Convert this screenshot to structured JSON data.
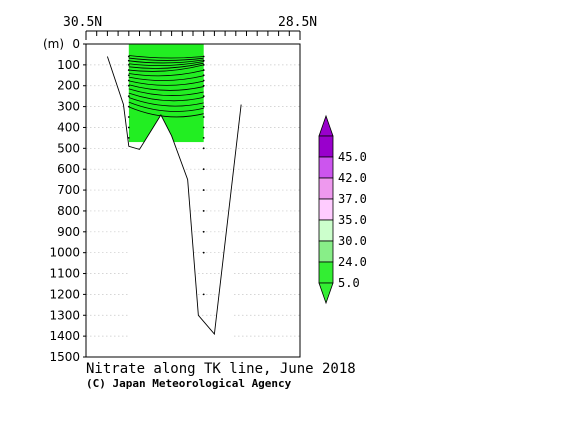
{
  "chart_data": {
    "type": "contour-section",
    "title": "Nitrate along TK line, June 2018",
    "credit": "(C) Japan Meteorological Agency",
    "x_axis": {
      "left_label": "30.5N",
      "right_label": "28.5N",
      "range_lat": [
        30.5,
        28.5
      ]
    },
    "y_axis": {
      "unit_label": "(m)",
      "range": [
        0,
        1500
      ],
      "ticks": [
        "0",
        "100",
        "200",
        "300",
        "400",
        "500",
        "600",
        "700",
        "800",
        "900",
        "1000",
        "1100",
        "1200",
        "1300",
        "1400",
        "1500"
      ]
    },
    "grid": true,
    "legend": {
      "placement": "right",
      "levels": [
        "45.0",
        "42.0",
        "37.0",
        "35.0",
        "30.0",
        "24.0",
        "5.0"
      ],
      "colors": [
        "#9900cc",
        "#cc55ee",
        "#ee99ee",
        "#ffccff",
        "#ccffcc",
        "#88ee88",
        "#33ee33"
      ],
      "top_color": "#9900cc",
      "bottom_color": "#33ee33"
    },
    "fill_color": "#22ee22",
    "contour_region": {
      "lat_north": 30.1,
      "lat_south": 29.4,
      "max_depth": 470
    },
    "bottom_profile": [
      {
        "lat": 30.3,
        "depth": 60
      },
      {
        "lat": 30.15,
        "depth": 290
      },
      {
        "lat": 30.1,
        "depth": 490
      },
      {
        "lat": 30.0,
        "depth": 505
      },
      {
        "lat": 29.8,
        "depth": 340
      },
      {
        "lat": 29.7,
        "depth": 440
      },
      {
        "lat": 29.55,
        "depth": 650
      },
      {
        "lat": 29.45,
        "depth": 1300
      },
      {
        "lat": 29.3,
        "depth": 1390
      },
      {
        "lat": 29.05,
        "depth": 290
      }
    ],
    "stations": [
      {
        "lat": 30.1,
        "depths": [
          60,
          80,
          100,
          125,
          150,
          175,
          200,
          250,
          300,
          350,
          400,
          450
        ]
      },
      {
        "lat": 29.4,
        "depths": [
          60,
          80,
          100,
          125,
          150,
          175,
          200,
          250,
          300,
          350,
          400,
          450,
          500,
          600,
          700,
          800,
          900,
          1000,
          1200
        ]
      }
    ]
  }
}
